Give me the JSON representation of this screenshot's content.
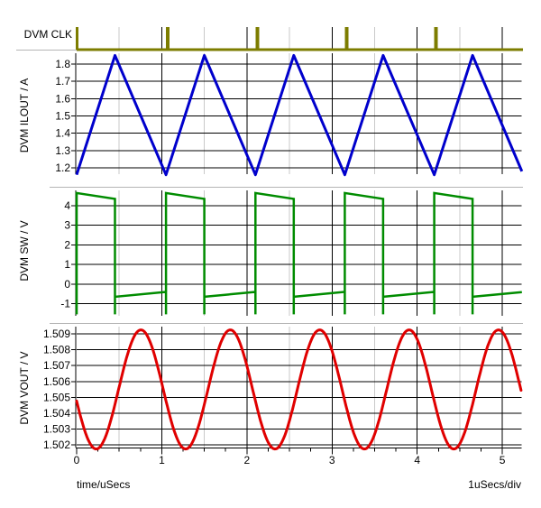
{
  "colors": {
    "clk": "#7d7d00",
    "ilout": "#0000cc",
    "sw": "#008c00",
    "vout": "#e00000",
    "grid_major": "#000000",
    "grid_minor": "#c9c9c9",
    "separator": "#b5b5b5",
    "text": "#000000",
    "bg": "#ffffff"
  },
  "x_axis": {
    "label": "time/uSecs",
    "units_per_div": "1uSecs/div",
    "major_ticks": [
      0,
      1,
      2,
      3,
      4,
      5
    ],
    "minor_tick_step_us": 0.25,
    "grid_minor_step_us": 0.5,
    "range_us": [
      0,
      5.23
    ]
  },
  "chart_data": [
    {
      "type": "digital",
      "name": "DVM CLK",
      "color_key": "clk",
      "pulse_times_us": [
        0,
        1.05,
        2.1,
        3.15,
        4.2
      ],
      "pulse_width_us": 0.04,
      "period_us": 1.05
    },
    {
      "type": "line",
      "shape": "triangle",
      "name": "DVM ILOUT / A",
      "color_key": "ilout",
      "yticks": [
        1.8,
        1.7,
        1.6,
        1.5,
        1.4,
        1.3,
        1.2
      ],
      "points": [
        [
          0,
          1.16
        ],
        [
          0.45,
          1.85
        ],
        [
          1.05,
          1.16
        ],
        [
          1.5,
          1.85
        ],
        [
          2.1,
          1.16
        ],
        [
          2.55,
          1.85
        ],
        [
          3.15,
          1.16
        ],
        [
          3.6,
          1.85
        ],
        [
          4.2,
          1.16
        ],
        [
          4.65,
          1.85
        ],
        [
          5.23,
          1.18
        ]
      ]
    },
    {
      "type": "line",
      "shape": "square",
      "name": "DVM SW / V",
      "color_key": "sw",
      "yticks": [
        4,
        3,
        2,
        1,
        0,
        -1
      ],
      "rise_times_us": [
        0,
        1.05,
        2.1,
        3.15,
        4.2
      ],
      "fall_times_us": [
        0.45,
        1.5,
        2.55,
        3.6,
        4.65
      ],
      "high_start_v": 4.65,
      "high_end_v": 4.35,
      "low_start_v": -0.65,
      "low_end_v": -0.4,
      "spike_min_v": -1.55,
      "end_t_us": 5.23,
      "end_v": -0.41
    },
    {
      "type": "line",
      "shape": "sine",
      "name": "DVM VOUT / V",
      "color_key": "vout",
      "yticks": [
        1.509,
        1.508,
        1.507,
        1.506,
        1.505,
        1.504,
        1.503,
        1.502
      ],
      "mean_v": 1.5055,
      "amplitude_v": 0.00375,
      "period_us": 1.05,
      "t_of_min_us": 0.23,
      "range_us": [
        0,
        5.23
      ]
    }
  ]
}
